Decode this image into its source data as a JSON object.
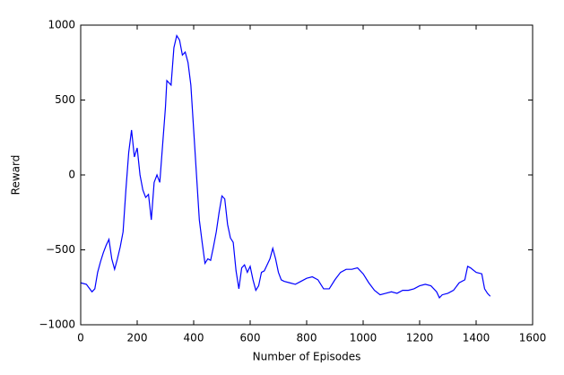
{
  "chart_data": {
    "type": "line",
    "x_label": "Number of Episodes",
    "y_label": "Reward",
    "x": [
      0,
      20,
      40,
      50,
      60,
      70,
      80,
      90,
      100,
      110,
      120,
      130,
      140,
      150,
      160,
      170,
      180,
      190,
      200,
      210,
      220,
      230,
      240,
      250,
      260,
      270,
      280,
      290,
      300,
      305,
      320,
      330,
      340,
      350,
      360,
      370,
      380,
      390,
      400,
      410,
      420,
      430,
      440,
      450,
      460,
      470,
      480,
      490,
      500,
      510,
      520,
      530,
      540,
      550,
      560,
      570,
      580,
      590,
      600,
      610,
      620,
      630,
      640,
      650,
      660,
      670,
      680,
      690,
      700,
      710,
      720,
      740,
      760,
      780,
      800,
      820,
      840,
      860,
      880,
      900,
      920,
      940,
      960,
      980,
      1000,
      1020,
      1040,
      1060,
      1080,
      1100,
      1120,
      1140,
      1160,
      1180,
      1200,
      1220,
      1240,
      1260,
      1270,
      1280,
      1300,
      1320,
      1340,
      1360,
      1370,
      1380,
      1400,
      1420,
      1430,
      1440,
      1450
    ],
    "series": [
      {
        "color": "#0000ff",
        "values": [
          -720,
          -730,
          -780,
          -760,
          -650,
          -580,
          -520,
          -470,
          -430,
          -560,
          -630,
          -560,
          -480,
          -380,
          -100,
          150,
          300,
          120,
          180,
          0,
          -100,
          -150,
          -130,
          -300,
          -50,
          0,
          -50,
          200,
          450,
          630,
          600,
          850,
          930,
          900,
          800,
          820,
          750,
          600,
          300,
          0,
          -300,
          -450,
          -590,
          -560,
          -570,
          -480,
          -380,
          -250,
          -140,
          -160,
          -330,
          -420,
          -450,
          -640,
          -760,
          -620,
          -600,
          -650,
          -610,
          -700,
          -770,
          -740,
          -650,
          -640,
          -600,
          -560,
          -490,
          -560,
          -650,
          -700,
          -710,
          -720,
          -730,
          -710,
          -690,
          -680,
          -700,
          -760,
          -760,
          -700,
          -650,
          -630,
          -630,
          -620,
          -660,
          -720,
          -770,
          -800,
          -790,
          -780,
          -790,
          -770,
          -770,
          -760,
          -740,
          -730,
          -740,
          -780,
          -820,
          -800,
          -790,
          -770,
          -720,
          -700,
          -610,
          -620,
          -650,
          -660,
          -760,
          -790,
          -810
        ]
      }
    ],
    "xlim": [
      0,
      1600
    ],
    "xticks": [
      0,
      200,
      400,
      600,
      800,
      1000,
      1200,
      1400,
      1600
    ],
    "ylim": [
      -1000,
      1000
    ],
    "yticks": [
      {
        "value": -1000,
        "label": "−1000"
      },
      {
        "value": -500,
        "label": "−500"
      },
      0,
      500,
      1000
    ],
    "grid": false
  }
}
